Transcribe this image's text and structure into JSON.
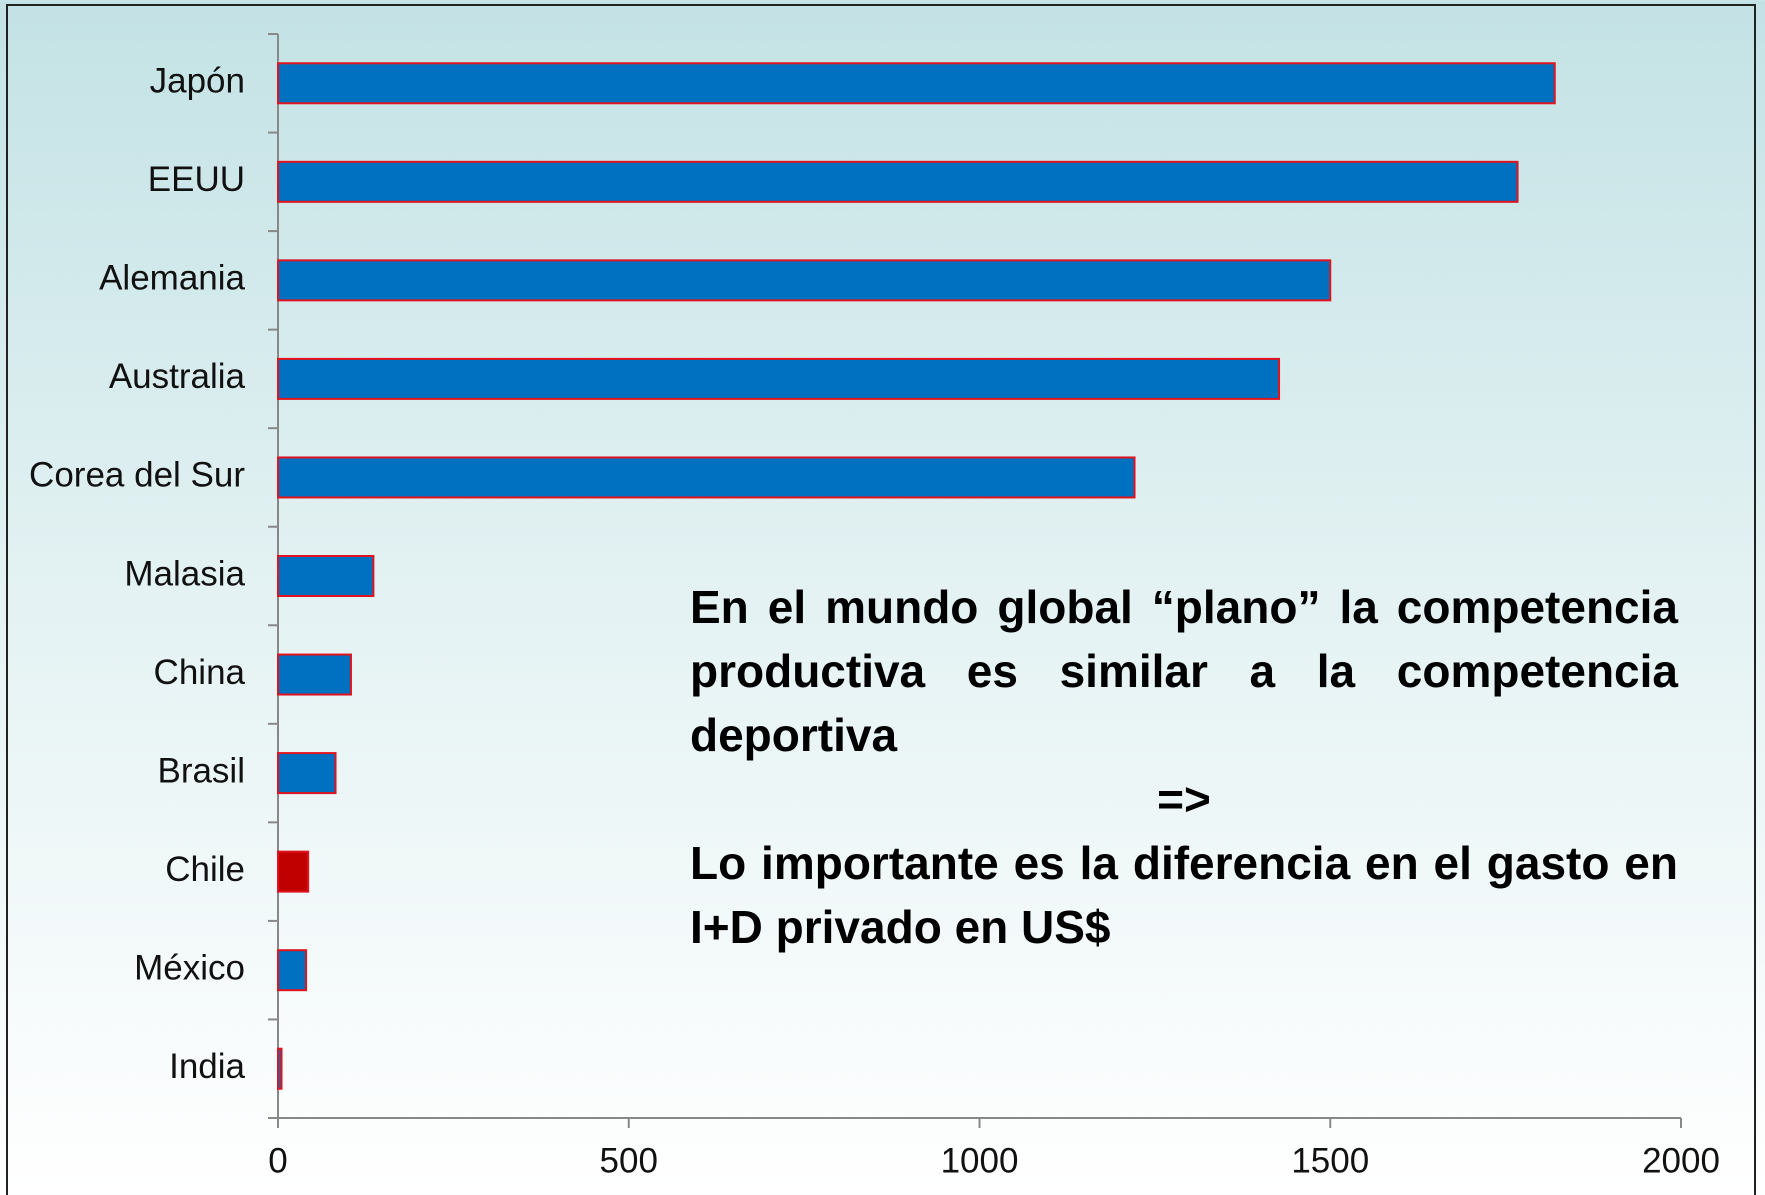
{
  "chart_data": {
    "type": "barh",
    "categories": [
      "Japón",
      "EEUU",
      "Alemania",
      "Australia",
      "Corea del Sur",
      "Malasia",
      "China",
      "Brasil",
      "Chile",
      "México",
      "India"
    ],
    "values": [
      1820,
      1767,
      1500,
      1427,
      1221,
      136,
      104,
      82,
      43,
      40,
      5
    ],
    "colors": [
      "#0070c0",
      "#0070c0",
      "#0070c0",
      "#0070c0",
      "#0070c0",
      "#0070c0",
      "#0070c0",
      "#0070c0",
      "#c00000",
      "#0070c0",
      "#0070c0"
    ],
    "edge_color": "#e0141e",
    "xlim": [
      0,
      2000
    ],
    "xticks": [
      0,
      500,
      1000,
      1500,
      2000
    ],
    "annotations": [
      "En el mundo global “plano” la competencia productiva es similar a la competencia deportiva",
      "=>",
      "Lo importante es la diferencia en el gasto en I+D privado en US$"
    ]
  }
}
